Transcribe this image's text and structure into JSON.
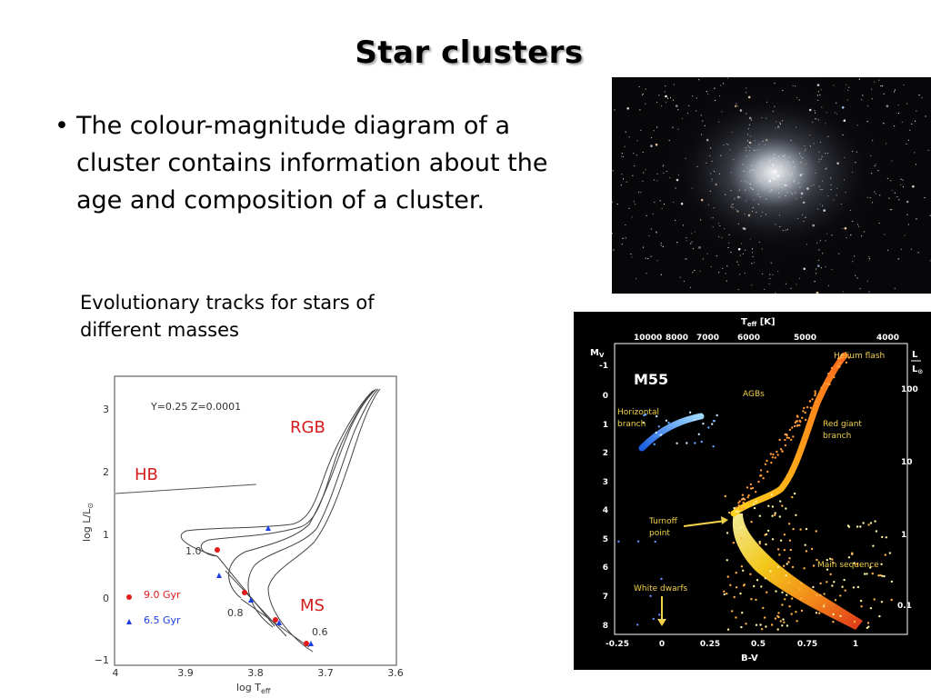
{
  "slide": {
    "title": "Star clusters",
    "bullet": "The colour-magnitude diagram of a cluster contains information about the age and composition of a cluster.",
    "caption": "Evolutionary tracks for stars of different masses"
  },
  "tracks_plot": {
    "params": "Y=0.25  Z=0.0001",
    "label_rgb": "RGB",
    "label_hb": "HB",
    "label_ms": "MS",
    "mass_labels": [
      "1.0",
      "0.8",
      "0.6"
    ],
    "legend": [
      {
        "label": "9.0 Gyr",
        "color": "#e21b1b"
      },
      {
        "label": "6.5 Gyr",
        "color": "#1b3ee2"
      }
    ],
    "ylabel_main": "log L/L",
    "ylabel_sub": "⊙",
    "xlabel_main": "log T",
    "xlabel_sub": "eff",
    "x_ticks": [
      "4",
      "3.9",
      "3.8",
      "3.7",
      "3.6"
    ],
    "y_ticks": [
      "3",
      "2",
      "1",
      "0",
      "−1"
    ]
  },
  "cmd_plot": {
    "cluster_name": "M55",
    "top_axis_main": "T",
    "top_axis_sub": "eff",
    "top_axis_unit": " [K]",
    "top_ticks": [
      "10000",
      "8000",
      "7000",
      "6000",
      "5000",
      "4000"
    ],
    "left_axis_main": "M",
    "left_axis_sub": "V",
    "left_ticks": [
      "-1",
      "0",
      "1",
      "2",
      "3",
      "4",
      "5",
      "6",
      "7",
      "8"
    ],
    "right_axis_top": "L",
    "right_axis_bottom": "L",
    "right_axis_sub": "⊙",
    "right_ticks": [
      "100",
      "10",
      "1",
      "0.1"
    ],
    "bottom_ticks": [
      "-0.25",
      "0",
      "0.25",
      "0.5",
      "0.75",
      "1"
    ],
    "bottom_axis_label": "B-V",
    "annotations": {
      "helium_flash": "Helium flash",
      "agbs": "AGBs",
      "horizontal_branch_1": "Horizontal",
      "horizontal_branch_2": "branch",
      "red_giant_1": "Red giant",
      "red_giant_2": "branch",
      "turnoff_1": "Turnoff",
      "turnoff_2": "point",
      "main_sequence": "Main sequence",
      "white_dwarfs": "White dwarfs"
    }
  }
}
